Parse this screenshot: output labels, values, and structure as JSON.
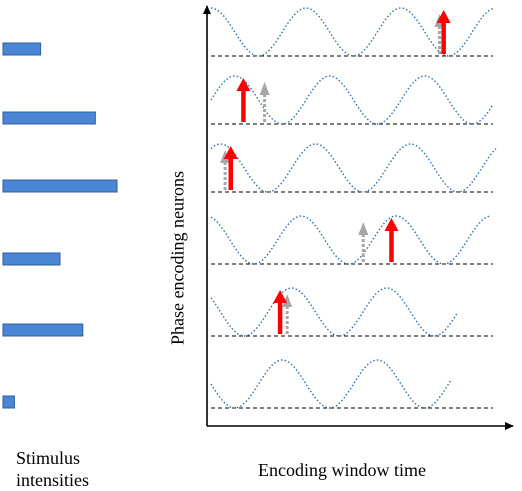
{
  "captions": {
    "stimulus_line1": "Stimulus",
    "stimulus_line2": "intensities",
    "x_axis": "Encoding window time",
    "y_axis": "Phase encoding neurons"
  },
  "colors": {
    "bar_fill": "#4a86d4",
    "bar_stroke": "#2e5f9e",
    "wave": "#2e6fb0",
    "baseline": "#000000",
    "spike_arrow": "#ff0000",
    "reference_arrow": "#a6a6a6"
  },
  "stimulus_intensities": [
    0.33,
    0.81,
    1.0,
    0.5,
    0.7,
    0.1
  ],
  "neurons": [
    {
      "phase_shift": 0.0,
      "spike_time": 0.825,
      "reference_time": 0.81
    },
    {
      "phase_shift": -0.25,
      "spike_time": 0.115,
      "reference_time": 0.19
    },
    {
      "phase_shift": -0.1,
      "spike_time": 0.07,
      "reference_time": 0.05
    },
    {
      "phase_shift": 0.05,
      "spike_time": 0.64,
      "reference_time": 0.54
    },
    {
      "phase_shift": 0.15,
      "spike_time": 0.245,
      "reference_time": 0.27
    },
    {
      "phase_shift": 0.25,
      "spike_time": null,
      "reference_time": null
    }
  ]
}
